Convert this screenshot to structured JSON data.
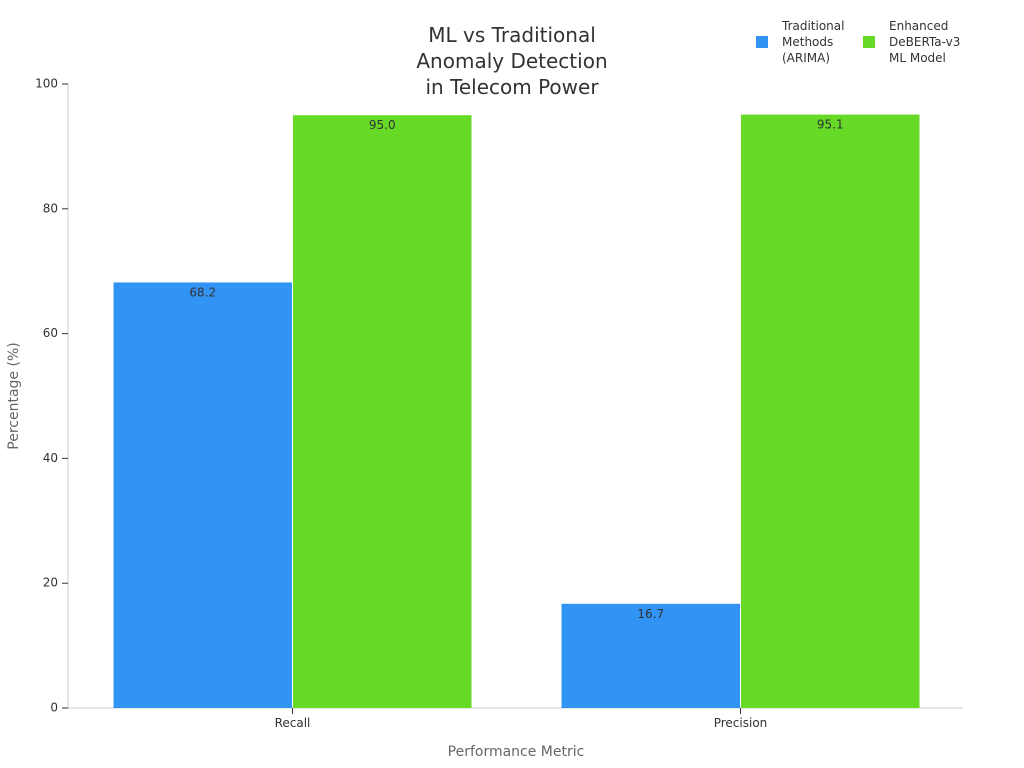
{
  "chart_data": {
    "type": "bar",
    "title_lines": [
      "ML vs Traditional",
      "Anomaly Detection",
      "in Telecom Power"
    ],
    "xlabel": "Performance Metric",
    "ylabel": "Percentage (%)",
    "categories": [
      "Recall",
      "Precision"
    ],
    "ylim": [
      0,
      100
    ],
    "yticks": [
      "0",
      "20",
      "40",
      "60",
      "80",
      "100"
    ],
    "ytick_values": [
      0,
      20,
      40,
      60,
      80,
      100
    ],
    "grid": false,
    "legend_position": "top-right",
    "series": [
      {
        "name_lines": [
          "Traditional",
          "Methods",
          "(ARIMA)"
        ],
        "color": "#3194f5",
        "values": [
          68.2,
          16.7
        ],
        "labels": [
          "68.2",
          "16.7"
        ]
      },
      {
        "name_lines": [
          "Enhanced",
          "DeBERTa-v3",
          "ML Model"
        ],
        "color": "#66da26",
        "values": [
          95.0,
          95.1
        ],
        "labels": [
          "95.0",
          "95.1"
        ]
      }
    ]
  }
}
